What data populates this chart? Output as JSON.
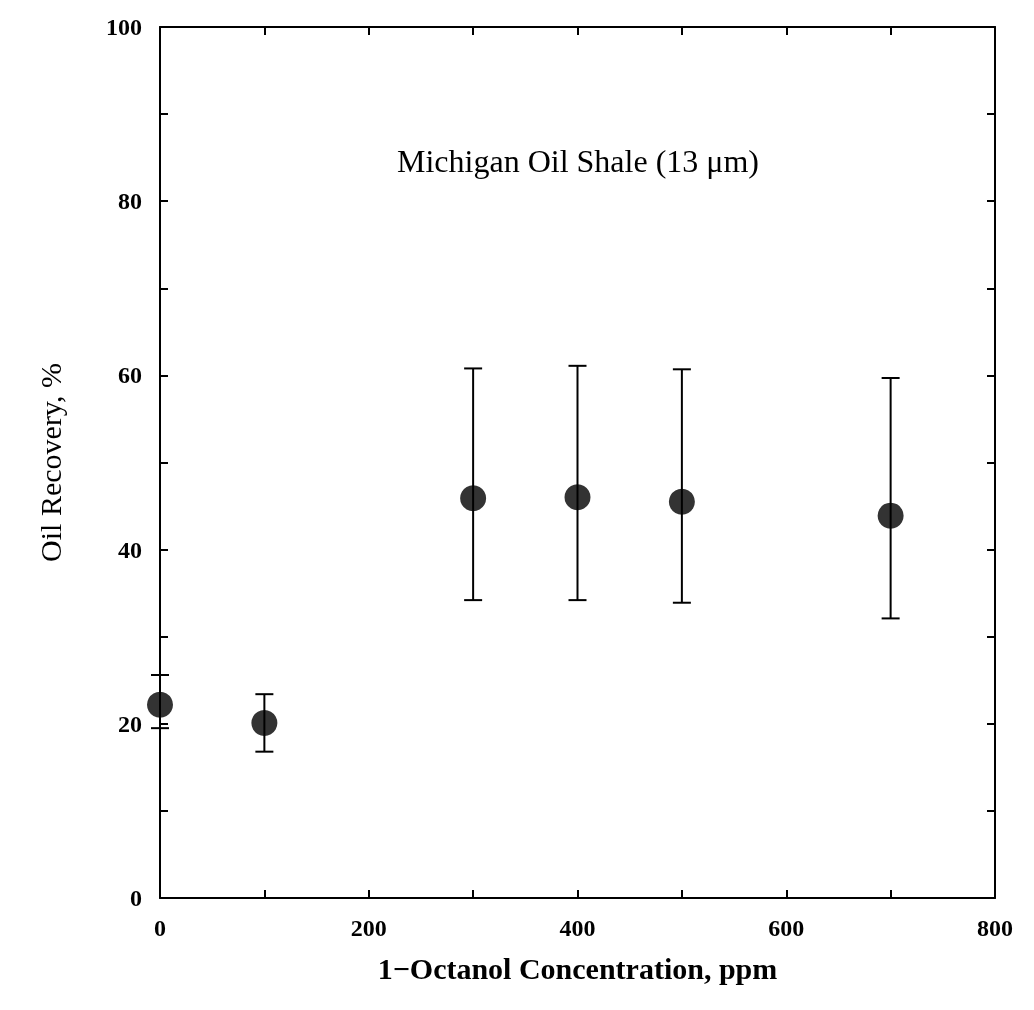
{
  "chart_data": {
    "type": "scatter",
    "xlabel": "1−Octanol Concentration, ppm",
    "ylabel": "Oil Recovery, %",
    "annotations": [
      "Michigan Oil Shale (13 μm)"
    ],
    "x": [
      0,
      100,
      300,
      400,
      500,
      700
    ],
    "series": [
      {
        "color": "#000000",
        "values": [
          22.2,
          20.1,
          45.9,
          46.0,
          45.5,
          43.9
        ],
        "errors": [
          [
            19.5,
            25.6
          ],
          [
            16.8,
            23.4
          ],
          [
            34.2,
            60.8
          ],
          [
            34.2,
            61.1
          ],
          [
            33.9,
            60.7
          ],
          [
            32.1,
            59.7
          ]
        ]
      }
    ],
    "xlim": [
      0,
      800
    ],
    "xticks": [
      0,
      {
        "value": 100,
        "label": null
      },
      200,
      {
        "value": 300,
        "label": null
      },
      400,
      {
        "value": 500,
        "label": null
      },
      600,
      {
        "value": 700,
        "label": null
      },
      800
    ],
    "ylim": [
      0,
      100
    ],
    "yticks": [
      0,
      {
        "value": 10,
        "label": null
      },
      20,
      {
        "value": 30,
        "label": null
      },
      40,
      {
        "value": 50,
        "label": null
      },
      60,
      {
        "value": 70,
        "label": null
      },
      80,
      {
        "value": 90,
        "label": null
      },
      100
    ],
    "marker": "circle"
  }
}
